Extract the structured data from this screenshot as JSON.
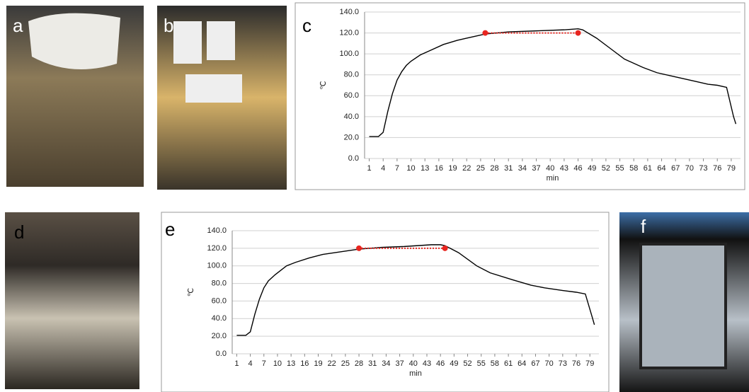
{
  "panel_labels": [
    "a",
    "b",
    "c",
    "d",
    "e",
    "f"
  ],
  "chart_data": [
    {
      "type": "line",
      "ylabel": "℃",
      "xlabel": "min",
      "xlim": [
        0,
        81
      ],
      "xticks": [
        1,
        4,
        7,
        10,
        13,
        16,
        19,
        22,
        25,
        28,
        31,
        34,
        37,
        40,
        43,
        46,
        49,
        52,
        55,
        58,
        61,
        64,
        67,
        70,
        73,
        76,
        79
      ],
      "ylim": [
        0,
        140
      ],
      "yticks": [
        {
          "value": 0,
          "label": "0.0"
        },
        {
          "value": 20,
          "label": "20.0"
        },
        {
          "value": 40,
          "label": "40.0"
        },
        {
          "value": 60,
          "label": "60.0"
        },
        {
          "value": 80,
          "label": "80.0"
        },
        {
          "value": 100,
          "label": "100.0"
        },
        {
          "value": 120,
          "label": "120.0"
        },
        {
          "value": 140,
          "label": "140.0"
        }
      ],
      "grid": true,
      "series": [
        {
          "color": "#000000",
          "x": [
            1,
            3,
            4,
            5,
            6,
            7,
            8,
            9,
            10,
            12,
            14,
            17,
            20,
            22,
            26,
            31,
            37,
            43,
            46,
            47,
            50,
            53,
            56,
            60,
            63,
            67,
            71,
            74,
            76,
            78,
            79.5,
            80
          ],
          "values": [
            21,
            21,
            25,
            45,
            62,
            75,
            83,
            89,
            93,
            99,
            103,
            109,
            113,
            115,
            119,
            121,
            122,
            123,
            124,
            123,
            115,
            105,
            95,
            87,
            82,
            78,
            74,
            71,
            70,
            68,
            40,
            33
          ]
        },
        {
          "color": "#e8251f",
          "dotted": true,
          "markers": true,
          "x": [
            26,
            46
          ],
          "values": [
            120,
            120
          ]
        }
      ]
    },
    {
      "type": "line",
      "ylabel": "℃",
      "xlabel": "min",
      "xlim": [
        0,
        81
      ],
      "xticks": [
        1,
        4,
        7,
        10,
        13,
        16,
        19,
        22,
        25,
        28,
        31,
        34,
        37,
        40,
        43,
        46,
        49,
        52,
        55,
        58,
        61,
        64,
        67,
        70,
        73,
        76,
        79
      ],
      "ylim": [
        0,
        140
      ],
      "yticks": [
        {
          "value": 0,
          "label": "0.0"
        },
        {
          "value": 20,
          "label": "20.0"
        },
        {
          "value": 40,
          "label": "40.0"
        },
        {
          "value": 60,
          "label": "60.0"
        },
        {
          "value": 80,
          "label": "80.0"
        },
        {
          "value": 100,
          "label": "100.0"
        },
        {
          "value": 120,
          "label": "120.0"
        },
        {
          "value": 140,
          "label": "140.0"
        }
      ],
      "grid": true,
      "series": [
        {
          "color": "#000000",
          "x": [
            1,
            3,
            4,
            5,
            6,
            7,
            8,
            9.5,
            12,
            14,
            17,
            20,
            24,
            28,
            33,
            38,
            44,
            46,
            47,
            50,
            54,
            57,
            62,
            66,
            69,
            73,
            76,
            78,
            79.5,
            80
          ],
          "values": [
            21,
            21,
            25,
            45,
            62,
            75,
            83,
            90,
            100,
            104,
            109,
            113,
            116,
            119,
            121,
            122,
            124,
            124,
            123,
            115,
            100,
            92,
            84,
            78,
            75,
            72,
            70,
            68,
            42,
            33
          ]
        },
        {
          "color": "#e8251f",
          "dotted": true,
          "markers": true,
          "x": [
            28,
            47
          ],
          "values": [
            120,
            120
          ]
        }
      ]
    }
  ]
}
